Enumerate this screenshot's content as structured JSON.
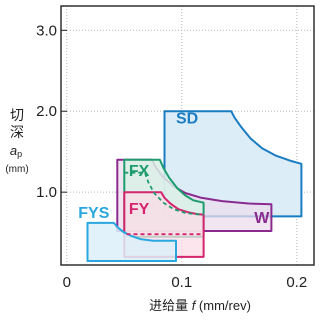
{
  "chart_data": {
    "type": "area",
    "title": "",
    "xlabel": "进给量 f (mm/rev)",
    "xlabel_parts": {
      "prefix": "进给量 ",
      "var": "f",
      "unit": " (mm/rev)"
    },
    "ylabel_parts": {
      "line1": "切",
      "line2": "深",
      "var": "a",
      "sub": "p",
      "unit": "(mm)"
    },
    "xlim": [
      -0.005,
      0.215
    ],
    "ylim": [
      0.1,
      3.3
    ],
    "x_ticks": [
      {
        "value": 0,
        "label": "0"
      },
      {
        "value": 0.1,
        "label": "0.1"
      },
      {
        "value": 0.2,
        "label": "0.2"
      }
    ],
    "y_ticks": [
      {
        "value": 1.0,
        "label": "1.0"
      },
      {
        "value": 2.0,
        "label": "2.0"
      },
      {
        "value": 3.0,
        "label": "3.0"
      }
    ],
    "grid": true,
    "series": [
      {
        "name": "SD",
        "color": "#1a7cc1",
        "fill": "#dcedf8",
        "fill_opacity": 1,
        "dashed": false,
        "outline": [
          [
            0.085,
            2.0
          ],
          [
            0.143,
            2.0
          ],
          [
            0.146,
            1.92
          ],
          [
            0.152,
            1.8
          ],
          [
            0.16,
            1.66
          ],
          [
            0.17,
            1.54
          ],
          [
            0.182,
            1.45
          ],
          [
            0.194,
            1.39
          ],
          [
            0.204,
            1.35
          ],
          [
            0.204,
            0.7
          ],
          [
            0.085,
            0.7
          ]
        ],
        "label_pos": [
          0.095,
          1.85
        ]
      },
      {
        "name": "W",
        "color": "#8a2a8e",
        "fill": "#ecdcee",
        "fill_opacity": 0.75,
        "dashed": false,
        "outline": [
          [
            0.044,
            1.4
          ],
          [
            0.074,
            1.4
          ],
          [
            0.077,
            1.32
          ],
          [
            0.083,
            1.2
          ],
          [
            0.092,
            1.08
          ],
          [
            0.103,
            0.99
          ],
          [
            0.117,
            0.93
          ],
          [
            0.135,
            0.89
          ],
          [
            0.158,
            0.86
          ],
          [
            0.178,
            0.85
          ],
          [
            0.178,
            0.52
          ],
          [
            0.044,
            0.52
          ]
        ],
        "label_pos": [
          0.163,
          0.62
        ]
      },
      {
        "name": "FX",
        "color": "#1e9c6e",
        "fill": "#dbf1e8",
        "fill_opacity": 0.85,
        "dashed": false,
        "outline": [
          [
            0.05,
            1.4
          ],
          [
            0.081,
            1.4
          ],
          [
            0.084,
            1.3
          ],
          [
            0.089,
            1.18
          ],
          [
            0.096,
            1.05
          ],
          [
            0.103,
            0.96
          ],
          [
            0.11,
            0.9
          ],
          [
            0.119,
            0.87
          ],
          [
            0.119,
            0.45
          ],
          [
            0.05,
            0.45
          ]
        ],
        "label_pos": [
          0.054,
          1.2
        ]
      },
      {
        "name": "FY",
        "color": "#d6246e",
        "fill": "#fbdce6",
        "fill_opacity": 0.75,
        "dashed": false,
        "outline": [
          [
            0.05,
            1.0
          ],
          [
            0.082,
            1.0
          ],
          [
            0.085,
            0.93
          ],
          [
            0.09,
            0.86
          ],
          [
            0.097,
            0.79
          ],
          [
            0.106,
            0.75
          ],
          [
            0.113,
            0.73
          ],
          [
            0.119,
            0.72
          ],
          [
            0.119,
            0.2
          ],
          [
            0.05,
            0.2
          ]
        ],
        "label_pos": [
          0.054,
          0.73
        ]
      },
      {
        "name": "FYS",
        "color": "#2aa7df",
        "fill": "#dcf0fa",
        "fill_opacity": 0.85,
        "dashed": false,
        "outline": [
          [
            0.018,
            0.62
          ],
          [
            0.041,
            0.62
          ],
          [
            0.044,
            0.57
          ],
          [
            0.049,
            0.51
          ],
          [
            0.056,
            0.46
          ],
          [
            0.064,
            0.42
          ],
          [
            0.075,
            0.4
          ],
          [
            0.095,
            0.4
          ],
          [
            0.095,
            0.15
          ],
          [
            0.018,
            0.15
          ]
        ],
        "label_pos": [
          0.01,
          0.68
        ]
      }
    ],
    "dashed_overlays": [
      {
        "name": "FX",
        "color": "#1e9c6e",
        "points": [
          [
            0.05,
            1.24
          ],
          [
            0.068,
            1.24
          ],
          [
            0.071,
            1.12
          ],
          [
            0.076,
            0.99
          ],
          [
            0.084,
            0.87
          ],
          [
            0.093,
            0.79
          ],
          [
            0.104,
            0.74
          ],
          [
            0.119,
            0.72
          ]
        ]
      },
      {
        "name": "FY",
        "color": "#d6246e",
        "points": [
          [
            0.052,
            0.48
          ],
          [
            0.119,
            0.48
          ]
        ]
      }
    ]
  }
}
